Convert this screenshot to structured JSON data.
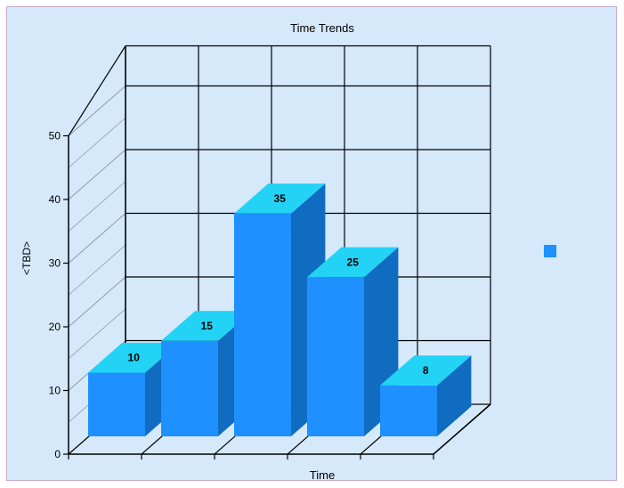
{
  "chart_data": {
    "type": "bar",
    "title": "Time Trends",
    "xlabel": "Time",
    "ylabel": "<TBD>",
    "categories": [
      "",
      "",
      "",
      "",
      ""
    ],
    "values": [
      10,
      15,
      35,
      25,
      8
    ],
    "ylim": [
      0,
      50
    ],
    "yticks": [
      "0",
      "10",
      "20",
      "30",
      "40",
      "50"
    ],
    "grid": true,
    "legend": "right",
    "colors": {
      "bar_front": "#1e90ff",
      "bar_top": "#22d3f5",
      "bar_side": "#0f6cc1",
      "background": "#d5e9fb",
      "grid": "#000000",
      "wall_grid": "#8a9aa8"
    }
  }
}
